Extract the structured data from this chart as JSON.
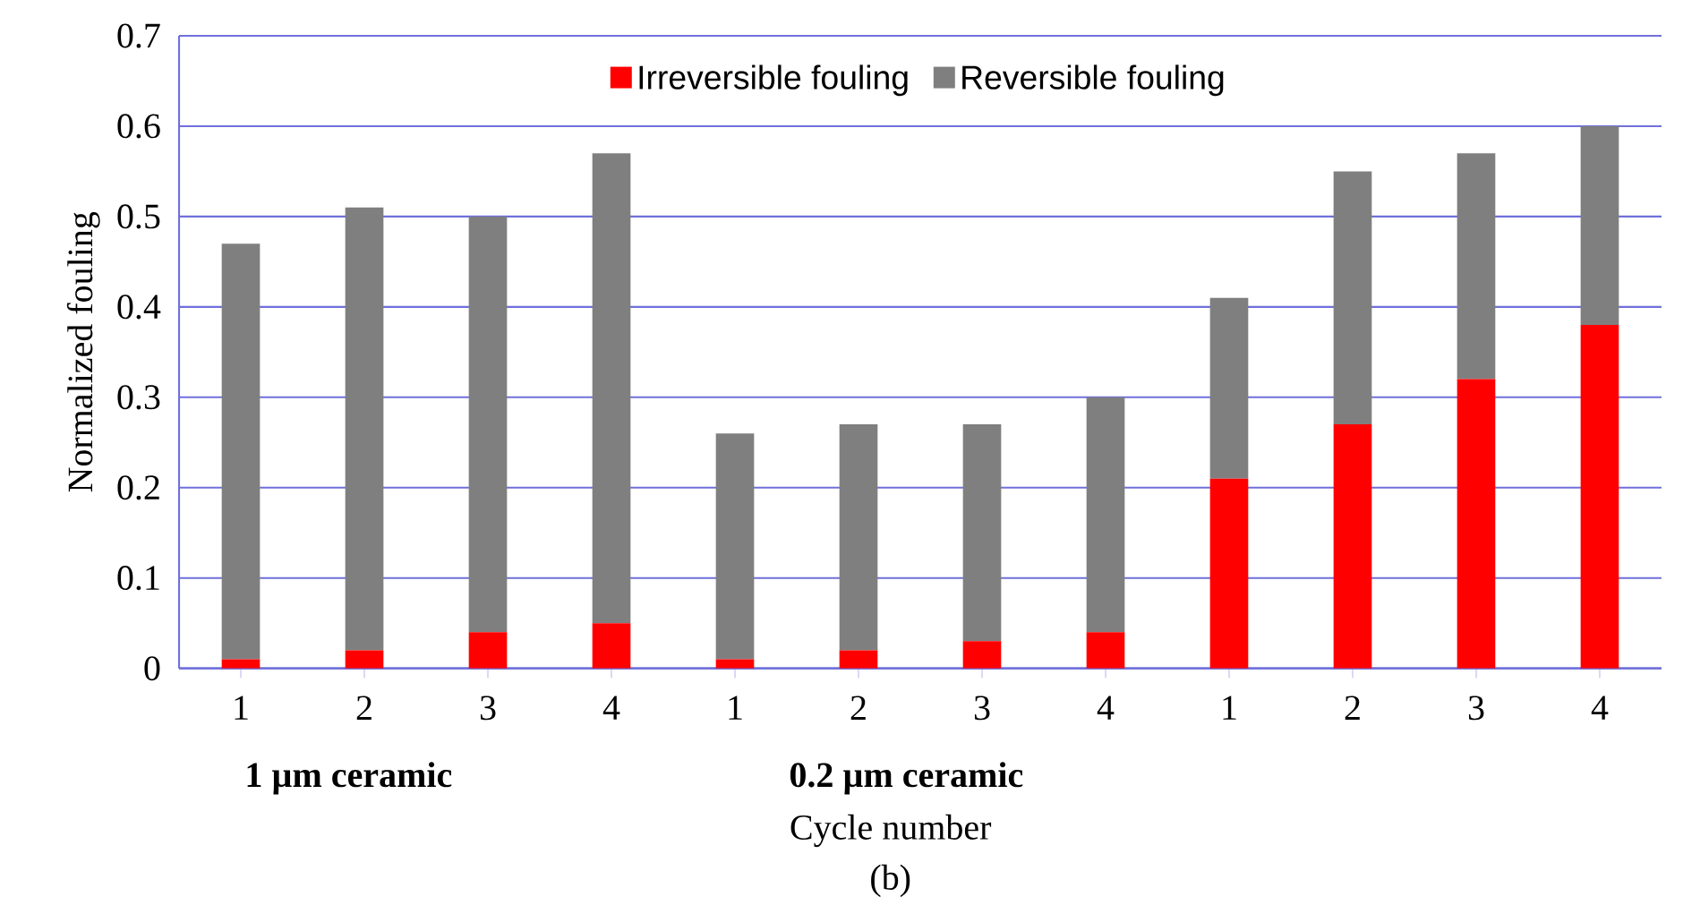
{
  "chart_data": {
    "type": "bar",
    "stacked": true,
    "ylabel": "Normalized fouling",
    "xlabel": "Cycle number",
    "categories": [
      "1",
      "2",
      "3",
      "4",
      "1",
      "2",
      "3",
      "4",
      "1",
      "2",
      "3",
      "4"
    ],
    "series": [
      {
        "name": "Irreversible fouling",
        "color": "#ff0000",
        "values": [
          0.01,
          0.02,
          0.04,
          0.05,
          0.01,
          0.02,
          0.03,
          0.04,
          0.21,
          0.27,
          0.32,
          0.38
        ]
      },
      {
        "name": "Reversible fouling",
        "color": "#7f7f7f",
        "values": [
          0.46,
          0.49,
          0.46,
          0.52,
          0.25,
          0.25,
          0.24,
          0.26,
          0.2,
          0.28,
          0.25,
          0.22
        ]
      }
    ],
    "ylim": [
      0,
      0.7
    ],
    "yticks": [
      0,
      0.1,
      0.2,
      0.3,
      0.4,
      0.5,
      0.6,
      0.7
    ],
    "grid": "y",
    "legend": "top",
    "annotations": [
      "1 µm ceramic",
      "0.2 µm ceramic",
      "(b)"
    ]
  }
}
